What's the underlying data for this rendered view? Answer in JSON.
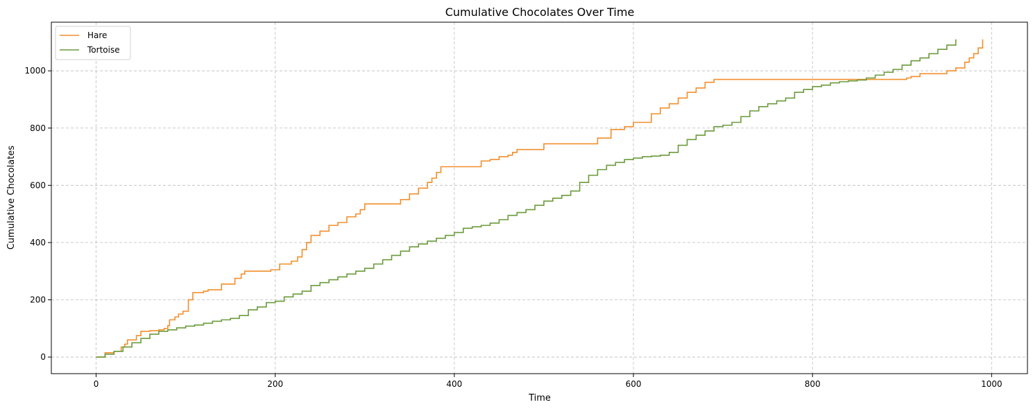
{
  "chart_data": {
    "type": "line",
    "step": true,
    "title": "Cumulative Chocolates Over Time",
    "xlabel": "Time",
    "ylabel": "Cumulative Chocolates",
    "xlim": [
      -50,
      1040
    ],
    "ylim": [
      -58,
      1170
    ],
    "xticks": [
      0,
      200,
      400,
      600,
      800,
      1000
    ],
    "yticks": [
      0,
      200,
      400,
      600,
      800,
      1000
    ],
    "grid": true,
    "legend_position": "top-left",
    "series": [
      {
        "name": "Hare",
        "color": "#f28e2b",
        "x": [
          0,
          10,
          20,
          28,
          32,
          35,
          45,
          50,
          60,
          70,
          76,
          80,
          82,
          88,
          92,
          97,
          103,
          108,
          120,
          125,
          140,
          155,
          162,
          166,
          170,
          180,
          195,
          205,
          218,
          225,
          230,
          235,
          240,
          250,
          260,
          270,
          280,
          290,
          295,
          300,
          320,
          340,
          350,
          360,
          370,
          375,
          380,
          385,
          390,
          420,
          430,
          440,
          450,
          460,
          465,
          470,
          500,
          520,
          560,
          575,
          590,
          600,
          620,
          630,
          640,
          650,
          660,
          670,
          680,
          690,
          700,
          750,
          800,
          850,
          905,
          910,
          920,
          950,
          960,
          970,
          975,
          980,
          985,
          990
        ],
        "y": [
          0,
          15,
          20,
          35,
          45,
          60,
          75,
          90,
          92,
          95,
          100,
          110,
          130,
          140,
          150,
          160,
          200,
          225,
          230,
          235,
          255,
          275,
          290,
          300,
          300,
          300,
          305,
          325,
          335,
          350,
          375,
          400,
          425,
          440,
          460,
          470,
          490,
          500,
          515,
          535,
          535,
          550,
          570,
          590,
          610,
          625,
          645,
          665,
          665,
          665,
          685,
          690,
          700,
          705,
          715,
          725,
          745,
          745,
          765,
          795,
          805,
          820,
          850,
          870,
          885,
          905,
          925,
          940,
          960,
          970,
          970,
          970,
          970,
          970,
          975,
          980,
          990,
          1000,
          1010,
          1030,
          1045,
          1060,
          1080,
          1110
        ]
      },
      {
        "name": "Tortoise",
        "color": "#6a9a3a",
        "x": [
          0,
          10,
          20,
          30,
          40,
          50,
          60,
          70,
          80,
          90,
          100,
          110,
          120,
          130,
          140,
          150,
          160,
          170,
          180,
          190,
          200,
          210,
          220,
          230,
          240,
          250,
          260,
          270,
          280,
          290,
          300,
          310,
          320,
          330,
          340,
          350,
          360,
          370,
          380,
          390,
          400,
          410,
          420,
          430,
          440,
          450,
          460,
          470,
          480,
          490,
          500,
          510,
          520,
          530,
          540,
          550,
          560,
          570,
          580,
          590,
          600,
          610,
          620,
          630,
          640,
          650,
          660,
          670,
          680,
          690,
          700,
          710,
          720,
          730,
          740,
          750,
          760,
          770,
          780,
          790,
          800,
          810,
          820,
          830,
          840,
          850,
          860,
          870,
          880,
          890,
          900,
          910,
          920,
          930,
          940,
          950,
          960
        ],
        "y": [
          0,
          10,
          20,
          35,
          50,
          65,
          80,
          90,
          95,
          102,
          108,
          112,
          118,
          125,
          130,
          135,
          145,
          165,
          175,
          190,
          195,
          210,
          220,
          230,
          250,
          260,
          270,
          280,
          290,
          300,
          310,
          325,
          340,
          355,
          370,
          385,
          395,
          405,
          415,
          425,
          435,
          450,
          455,
          460,
          468,
          480,
          495,
          505,
          515,
          530,
          545,
          555,
          565,
          580,
          610,
          635,
          655,
          670,
          680,
          690,
          695,
          700,
          702,
          705,
          715,
          740,
          760,
          775,
          790,
          805,
          810,
          820,
          840,
          860,
          875,
          885,
          895,
          905,
          925,
          935,
          945,
          950,
          958,
          962,
          965,
          968,
          975,
          985,
          995,
          1005,
          1020,
          1035,
          1045,
          1060,
          1075,
          1090,
          1110
        ]
      }
    ]
  }
}
